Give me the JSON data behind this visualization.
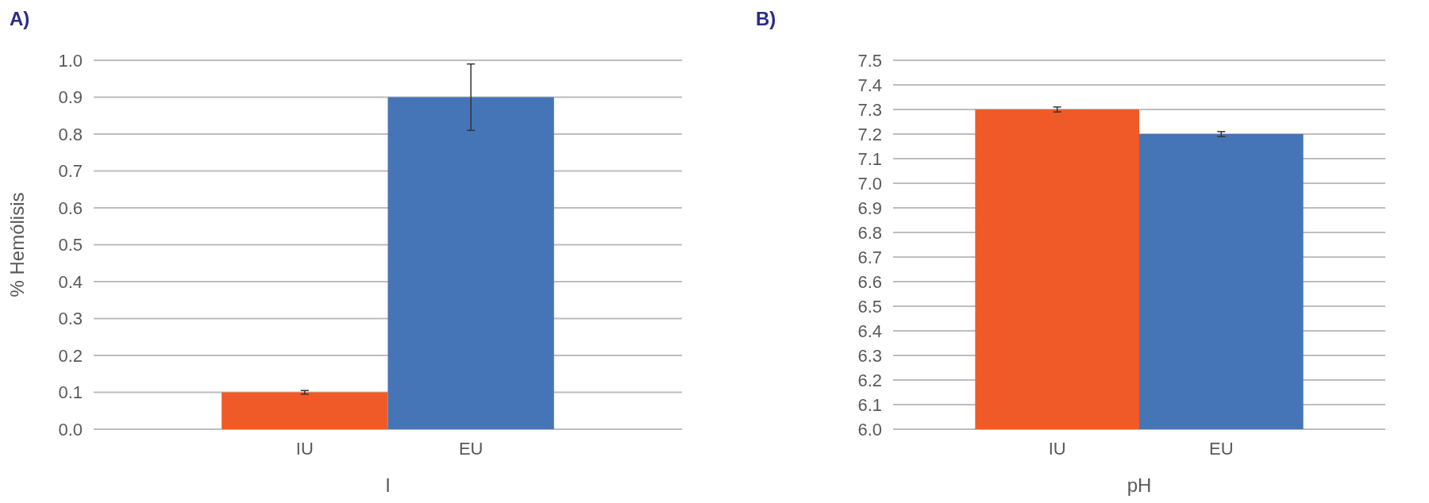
{
  "chart_data": [
    {
      "type": "bar",
      "title": "A)",
      "xlabel": "I",
      "ylabel": "% Hemólisis",
      "categories": [
        "IU",
        "EU"
      ],
      "values": [
        0.1,
        0.9
      ],
      "colors": [
        "#f05a28",
        "#4575b7"
      ],
      "errors": [
        0.005,
        0.09
      ],
      "ylim": [
        0,
        1.0
      ],
      "yticks": [
        {
          "value": 0,
          "label": "0.0"
        },
        0.1,
        0.2,
        0.3,
        0.4,
        0.5,
        0.6,
        0.7,
        0.8,
        0.9,
        {
          "value": 1,
          "label": "1.0"
        }
      ],
      "grid": "y"
    },
    {
      "type": "bar",
      "title": "B)",
      "xlabel": "pH",
      "categories": [
        "IU",
        "EU"
      ],
      "values": [
        7.3,
        7.2
      ],
      "colors": [
        "#f05a28",
        "#4575b7"
      ],
      "errors": [
        0.01,
        0.01
      ],
      "ylim": [
        6.0,
        7.5
      ],
      "yticks": [
        {
          "value": 6,
          "label": "6.0"
        },
        6.1,
        6.2,
        6.3,
        6.4,
        6.5,
        6.6,
        6.7,
        6.8,
        6.9,
        {
          "value": 7,
          "label": "7.0"
        },
        7.1,
        7.2,
        7.3,
        7.4,
        7.5
      ],
      "grid": "y"
    }
  ]
}
